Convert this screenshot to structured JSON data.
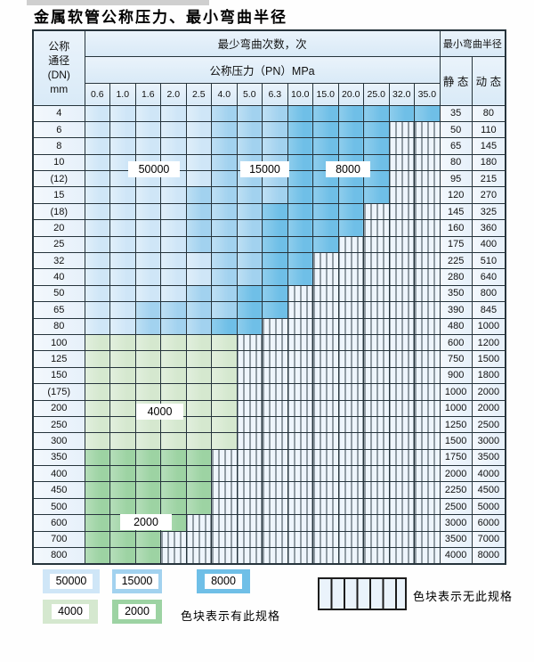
{
  "title": "金属软管公称压力、最小弯曲半径",
  "colors": {
    "b1": "#cfe6f7",
    "b2": "#a2d2ef",
    "b3": "#6fbfe7",
    "g1": "#d5e8cf",
    "g2": "#9dd3a3",
    "stripe_bg": "#eef5fc"
  },
  "table": {
    "dn_header_lines": [
      "公称",
      "通径",
      "(DN)",
      "mm"
    ],
    "cycles_header": "最少弯曲次数，次",
    "pressure_header": "公称压力（PN）MPa",
    "radius_header": "最小弯曲半径",
    "static_header": "静 态",
    "dynamic_header": "动 态",
    "pressure_cols": [
      "0.6",
      "1.0",
      "1.6",
      "2.0",
      "2.5",
      "4.0",
      "5.0",
      "6.3",
      "10.0",
      "15.0",
      "20.0",
      "25.0",
      "32.0",
      "35.0"
    ],
    "rows": [
      {
        "dn": "4",
        "zones": [
          [
            "b1",
            5
          ],
          [
            "b2",
            3
          ],
          [
            "b3",
            6
          ]
        ],
        "static": "35",
        "dynamic": "80"
      },
      {
        "dn": "6",
        "zones": [
          [
            "b1",
            5
          ],
          [
            "b2",
            3
          ],
          [
            "b3",
            4
          ],
          [
            "x",
            2
          ]
        ],
        "static": "50",
        "dynamic": "110"
      },
      {
        "dn": "8",
        "zones": [
          [
            "b1",
            5
          ],
          [
            "b2",
            3
          ],
          [
            "b3",
            4
          ],
          [
            "x",
            2
          ]
        ],
        "static": "65",
        "dynamic": "145"
      },
      {
        "dn": "10",
        "zones": [
          [
            "b1",
            5
          ],
          [
            "b2",
            3
          ],
          [
            "b3",
            4
          ],
          [
            "x",
            2
          ]
        ],
        "static": "80",
        "dynamic": "180"
      },
      {
        "dn": "(12)",
        "zones": [
          [
            "b1",
            5
          ],
          [
            "b2",
            3
          ],
          [
            "b3",
            4
          ],
          [
            "x",
            2
          ]
        ],
        "static": "95",
        "dynamic": "215"
      },
      {
        "dn": "15",
        "zones": [
          [
            "b1",
            4
          ],
          [
            "b2",
            4
          ],
          [
            "b3",
            4
          ],
          [
            "x",
            2
          ]
        ],
        "static": "120",
        "dynamic": "270"
      },
      {
        "dn": "(18)",
        "zones": [
          [
            "b1",
            4
          ],
          [
            "b2",
            3
          ],
          [
            "b3",
            4
          ],
          [
            "x",
            3
          ]
        ],
        "static": "145",
        "dynamic": "325"
      },
      {
        "dn": "20",
        "zones": [
          [
            "b1",
            4
          ],
          [
            "b2",
            3
          ],
          [
            "b3",
            4
          ],
          [
            "x",
            3
          ]
        ],
        "static": "160",
        "dynamic": "360"
      },
      {
        "dn": "25",
        "zones": [
          [
            "b1",
            4
          ],
          [
            "b2",
            3
          ],
          [
            "b3",
            3
          ],
          [
            "x",
            4
          ]
        ],
        "static": "175",
        "dynamic": "400"
      },
      {
        "dn": "32",
        "zones": [
          [
            "b1",
            5
          ],
          [
            "b2",
            2
          ],
          [
            "b3",
            2
          ],
          [
            "x",
            5
          ]
        ],
        "static": "225",
        "dynamic": "510"
      },
      {
        "dn": "40",
        "zones": [
          [
            "b1",
            5
          ],
          [
            "b2",
            2
          ],
          [
            "b3",
            2
          ],
          [
            "x",
            5
          ]
        ],
        "static": "280",
        "dynamic": "640"
      },
      {
        "dn": "50",
        "zones": [
          [
            "b1",
            4
          ],
          [
            "b2",
            2
          ],
          [
            "b3",
            2
          ],
          [
            "x",
            6
          ]
        ],
        "static": "350",
        "dynamic": "800"
      },
      {
        "dn": "65",
        "zones": [
          [
            "b1",
            2
          ],
          [
            "b2",
            4
          ],
          [
            "b3",
            2
          ],
          [
            "x",
            6
          ]
        ],
        "static": "390",
        "dynamic": "845"
      },
      {
        "dn": "80",
        "zones": [
          [
            "b1",
            2
          ],
          [
            "b2",
            3
          ],
          [
            "b3",
            2
          ],
          [
            "x",
            7
          ]
        ],
        "static": "480",
        "dynamic": "1000"
      },
      {
        "dn": "100",
        "zones": [
          [
            "g1",
            6
          ],
          [
            "x",
            8
          ]
        ],
        "static": "600",
        "dynamic": "1200"
      },
      {
        "dn": "125",
        "zones": [
          [
            "g1",
            6
          ],
          [
            "x",
            8
          ]
        ],
        "static": "750",
        "dynamic": "1500"
      },
      {
        "dn": "150",
        "zones": [
          [
            "g1",
            6
          ],
          [
            "x",
            8
          ]
        ],
        "static": "900",
        "dynamic": "1800"
      },
      {
        "dn": "(175)",
        "zones": [
          [
            "g1",
            6
          ],
          [
            "x",
            8
          ]
        ],
        "static": "1000",
        "dynamic": "2000"
      },
      {
        "dn": "200",
        "zones": [
          [
            "g1",
            6
          ],
          [
            "x",
            8
          ]
        ],
        "static": "1000",
        "dynamic": "2000"
      },
      {
        "dn": "250",
        "zones": [
          [
            "g1",
            6
          ],
          [
            "x",
            8
          ]
        ],
        "static": "1250",
        "dynamic": "2500"
      },
      {
        "dn": "300",
        "zones": [
          [
            "g1",
            6
          ],
          [
            "x",
            8
          ]
        ],
        "static": "1500",
        "dynamic": "3000"
      },
      {
        "dn": "350",
        "zones": [
          [
            "g2",
            5
          ],
          [
            "x",
            9
          ]
        ],
        "static": "1750",
        "dynamic": "3500"
      },
      {
        "dn": "400",
        "zones": [
          [
            "g2",
            5
          ],
          [
            "x",
            9
          ]
        ],
        "static": "2000",
        "dynamic": "4000"
      },
      {
        "dn": "450",
        "zones": [
          [
            "g2",
            5
          ],
          [
            "x",
            9
          ]
        ],
        "static": "2250",
        "dynamic": "4500"
      },
      {
        "dn": "500",
        "zones": [
          [
            "g2",
            5
          ],
          [
            "x",
            9
          ]
        ],
        "static": "2500",
        "dynamic": "5000"
      },
      {
        "dn": "600",
        "zones": [
          [
            "g2",
            4
          ],
          [
            "x",
            10
          ]
        ],
        "static": "3000",
        "dynamic": "6000"
      },
      {
        "dn": "700",
        "zones": [
          [
            "g2",
            3
          ],
          [
            "x",
            11
          ]
        ],
        "static": "3500",
        "dynamic": "7000"
      },
      {
        "dn": "800",
        "zones": [
          [
            "g2",
            3
          ],
          [
            "x",
            11
          ]
        ],
        "static": "4000",
        "dynamic": "8000"
      }
    ]
  },
  "zone_labels": {
    "l50000": "50000",
    "l15000": "15000",
    "l8000": "8000",
    "l4000": "4000",
    "l2000": "2000"
  },
  "legend": {
    "items": [
      {
        "label": "50000",
        "zone": "b1"
      },
      {
        "label": "15000",
        "zone": "b2"
      },
      {
        "label": "8000",
        "zone": "b3"
      },
      {
        "label": "4000",
        "zone": "g1"
      },
      {
        "label": "2000",
        "zone": "g2"
      }
    ],
    "available_note": "色块表示有此规格",
    "unavailable_note": "色块表示无此规格"
  },
  "chart_data": {
    "type": "table",
    "title": "金属软管公称压力、最小弯曲半径",
    "column_group_header": "最少弯曲次数，次",
    "column_subheader": "公称压力（PN）MPa",
    "columns_pn_mpa": [
      0.6,
      1.0,
      1.6,
      2.0,
      2.5,
      4.0,
      5.0,
      6.3,
      10.0,
      15.0,
      20.0,
      25.0,
      32.0,
      35.0
    ],
    "row_header": "公称通径 (DN) mm",
    "rows_dn_mm": [
      "4",
      "6",
      "8",
      "10",
      "(12)",
      "15",
      "(18)",
      "20",
      "25",
      "32",
      "40",
      "50",
      "65",
      "80",
      "100",
      "125",
      "150",
      "(175)",
      "200",
      "250",
      "300",
      "350",
      "400",
      "450",
      "500",
      "600",
      "700",
      "800"
    ],
    "zone_values_min_bend_cycles": {
      "b1": 50000,
      "b2": 15000,
      "b3": 8000,
      "g1": 4000,
      "g2": 2000,
      "x": null
    },
    "min_bend_radius_static": [
      35,
      50,
      65,
      80,
      95,
      120,
      145,
      160,
      175,
      225,
      280,
      350,
      390,
      480,
      600,
      750,
      900,
      1000,
      1000,
      1250,
      1500,
      1750,
      2000,
      2250,
      2500,
      3000,
      3500,
      4000
    ],
    "min_bend_radius_dynamic": [
      80,
      110,
      145,
      180,
      215,
      270,
      325,
      360,
      400,
      510,
      640,
      800,
      845,
      1000,
      1200,
      1500,
      1800,
      2000,
      2000,
      2500,
      3000,
      3500,
      4000,
      4500,
      5000,
      6000,
      7000,
      8000
    ],
    "legend_available": "色块表示有此规格",
    "legend_unavailable": "色块表示无此规格"
  }
}
